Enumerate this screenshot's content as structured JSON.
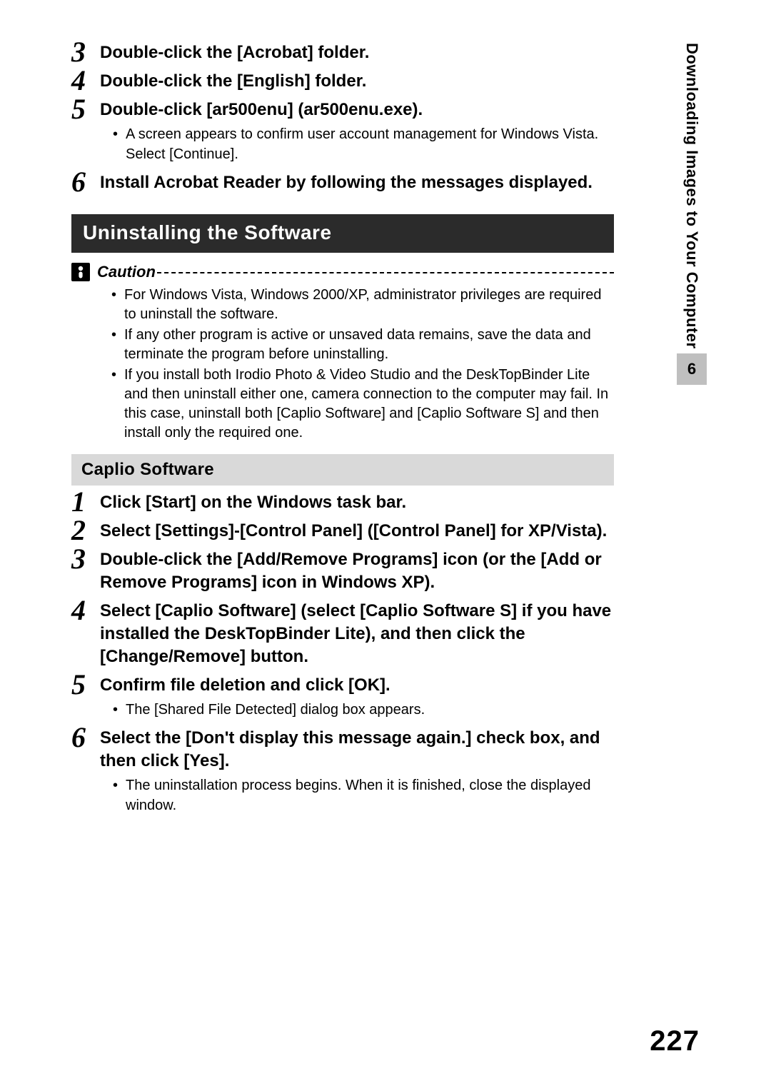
{
  "top_steps": [
    {
      "num": "3",
      "text": "Double-click the [Acrobat] folder.",
      "bullets": []
    },
    {
      "num": "4",
      "text": "Double-click the [English] folder.",
      "bullets": []
    },
    {
      "num": "5",
      "text": "Double-click [ar500enu] (ar500enu.exe).",
      "bullets": [
        "A screen appears to confirm user account management for Windows Vista. Select [Continue]."
      ]
    },
    {
      "num": "6",
      "text": "Install Acrobat Reader by following the messages displayed.",
      "bullets": []
    }
  ],
  "section_title": "Uninstalling the Software",
  "caution_label": "Caution",
  "caution_bullets": [
    "For Windows Vista, Windows 2000/XP, administrator privileges are required to uninstall the software.",
    "If any other program is active or unsaved data remains, save the data and terminate the program before uninstalling.",
    "If you install both Irodio Photo & Video Studio and the DeskTopBinder Lite and then uninstall either one, camera connection to the computer may fail. In this case, uninstall both [Caplio Software] and [Caplio Software S] and then install only the required one."
  ],
  "sub_heading": "Caplio Software",
  "caplio_steps": [
    {
      "num": "1",
      "text": "Click [Start] on the Windows task bar.",
      "bullets": []
    },
    {
      "num": "2",
      "text": "Select [Settings]-[Control Panel] ([Control Panel] for XP/Vista).",
      "bullets": []
    },
    {
      "num": "3",
      "text": "Double-click the [Add/Remove Programs] icon (or the [Add or Remove Programs] icon in Windows XP).",
      "bullets": []
    },
    {
      "num": "4",
      "text": "Select [Caplio Software] (select [Caplio Software S] if you have installed the DeskTopBinder Lite), and then click the [Change/Remove] button.",
      "bullets": []
    },
    {
      "num": "5",
      "text": "Confirm file deletion and click [OK].",
      "bullets": [
        "The [Shared File Detected] dialog box appears."
      ]
    },
    {
      "num": "6",
      "text": "Select the [Don't display this message again.] check box, and then click [Yes].",
      "bullets": [
        "The uninstallation process begins. When it is finished, close the displayed window."
      ]
    }
  ],
  "side_text": "Downloading Images to Your Computer",
  "chapter_number": "6",
  "page_number": "227",
  "colors": {
    "section_bg": "#2b2b2b",
    "section_fg": "#ffffff",
    "subheading_bg": "#d9d9d9",
    "chapter_bg": "#bfbfbf"
  }
}
